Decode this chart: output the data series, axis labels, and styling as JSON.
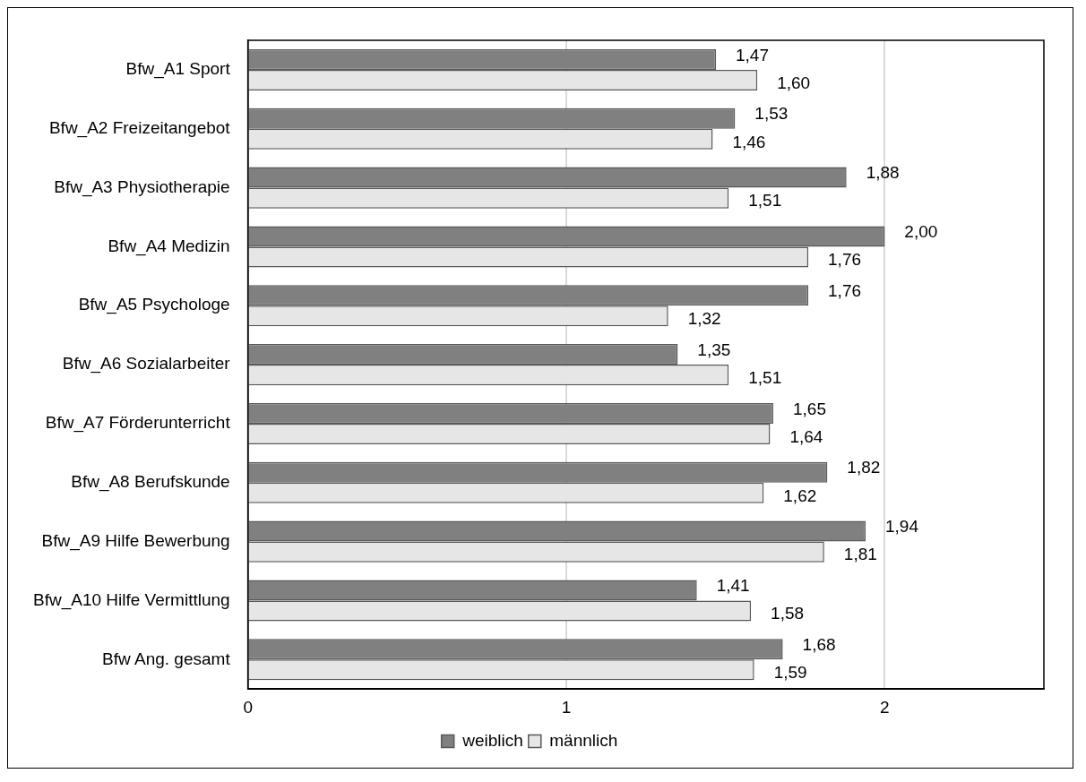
{
  "chart_data": {
    "type": "bar",
    "orientation": "horizontal",
    "categories": [
      "Bfw_A1 Sport",
      "Bfw_A2 Freizeitangebot",
      "Bfw_A3 Physiotherapie",
      "Bfw_A4 Medizin",
      "Bfw_A5 Psychologe",
      "Bfw_A6 Sozialarbeiter",
      "Bfw_A7 Förderunterricht",
      "Bfw_A8 Berufskunde",
      "Bfw_A9 Hilfe Bewerbung",
      "Bfw_A10 Hilfe Vermittlung",
      "Bfw Ang. gesamt"
    ],
    "series": [
      {
        "name": "weiblich",
        "color": "#808080",
        "values": [
          1.47,
          1.53,
          1.88,
          2.0,
          1.76,
          1.35,
          1.65,
          1.82,
          1.94,
          1.41,
          1.68
        ],
        "value_labels": [
          "1,47",
          "1,53",
          "1,88",
          "2,00",
          "1,76",
          "1,35",
          "1,65",
          "1,82",
          "1,94",
          "1,41",
          "1,68"
        ]
      },
      {
        "name": "männlich",
        "color": "#e6e6e6",
        "values": [
          1.6,
          1.46,
          1.51,
          1.76,
          1.32,
          1.51,
          1.64,
          1.62,
          1.81,
          1.58,
          1.59
        ],
        "value_labels": [
          "1,60",
          "1,46",
          "1,51",
          "1,76",
          "1,32",
          "1,51",
          "1,64",
          "1,62",
          "1,81",
          "1,58",
          "1,59"
        ]
      }
    ],
    "xlim": [
      0,
      2.5
    ],
    "xticks": [
      0,
      1,
      2
    ],
    "grid": "x",
    "legend": "bottom"
  }
}
